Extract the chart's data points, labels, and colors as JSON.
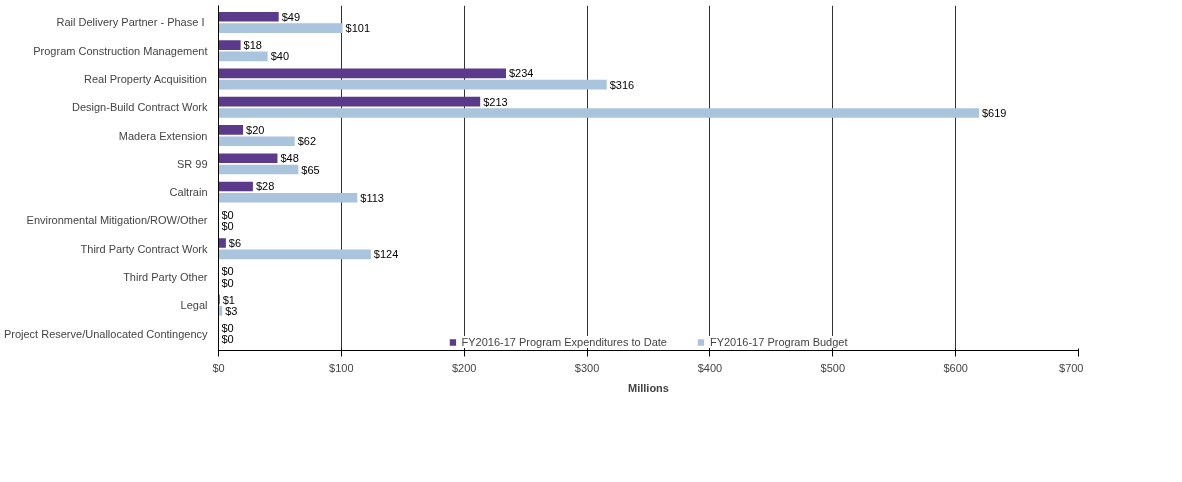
{
  "chart_data": {
    "type": "bar",
    "orientation": "horizontal",
    "categories": [
      "Rail Delivery Partner  - Phase I",
      "Program Construction Management",
      "Real Property Acquisition",
      "Design-Build Contract Work",
      "Madera Extension",
      "SR 99",
      "Caltrain",
      "Environmental Mitigation/ROW/Other",
      "Third Party Contract Work",
      "Third Party Other",
      "Legal",
      "Project Reserve/Unallocated Contingency"
    ],
    "series": [
      {
        "name": "FY2016-17 Program Expenditures to Date",
        "color": "#5b3a8c",
        "values": [
          49,
          18,
          234,
          213,
          20,
          48,
          28,
          0,
          6,
          0,
          1,
          0
        ],
        "value_labels": [
          "$49",
          "$18",
          "$234",
          "$213",
          "$20",
          "$48",
          "$28",
          "$0",
          "$6",
          "$0",
          "$1",
          "$0"
        ]
      },
      {
        "name": "FY2016-17 Program Budget",
        "color": "#a9c4dc",
        "values": [
          101,
          40,
          316,
          619,
          62,
          65,
          113,
          0,
          124,
          0,
          3,
          0
        ],
        "value_labels": [
          "$101",
          "$40",
          "$316",
          "$619",
          "$62",
          "$65",
          "$113",
          "$0",
          "$124",
          "$0",
          "$3",
          "$0"
        ]
      }
    ],
    "xlim": [
      0,
      700
    ],
    "xticks": [
      {
        "value": 0,
        "label": "$0"
      },
      {
        "value": 100,
        "label": "$100"
      },
      {
        "value": 200,
        "label": "$200"
      },
      {
        "value": 300,
        "label": "$300"
      },
      {
        "value": 400,
        "label": "$400"
      },
      {
        "value": 500,
        "label": "$500"
      },
      {
        "value": 600,
        "label": "$600"
      },
      {
        "value": 700,
        "label": "$700"
      }
    ],
    "xlabel": "Millions",
    "grid": "x",
    "legend": "bottom"
  }
}
